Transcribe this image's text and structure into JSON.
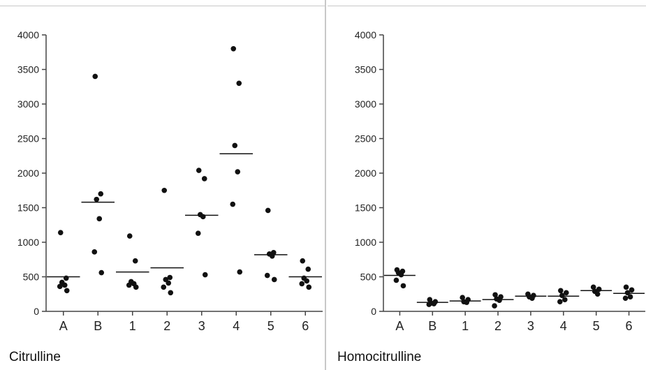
{
  "chart_data": [
    {
      "type": "scatter",
      "title": "Citrulline",
      "categories": [
        "A",
        "B",
        "1",
        "2",
        "3",
        "4",
        "5",
        "6"
      ],
      "ylim": [
        0,
        4000
      ],
      "yticks": [
        0,
        500,
        1000,
        1500,
        2000,
        2500,
        3000,
        3500,
        4000
      ],
      "grid": false,
      "points": [
        [
          1140,
          480,
          420,
          380,
          360,
          300
        ],
        [
          3400,
          1700,
          1620,
          1340,
          860,
          560
        ],
        [
          1090,
          730,
          430,
          400,
          380,
          350
        ],
        [
          1750,
          490,
          460,
          410,
          350,
          270
        ],
        [
          2040,
          1920,
          1400,
          1370,
          1130,
          530
        ],
        [
          3800,
          3300,
          2400,
          2020,
          1550,
          570
        ],
        [
          1460,
          850,
          830,
          800,
          520,
          460
        ],
        [
          730,
          610,
          480,
          440,
          400,
          350
        ]
      ],
      "means": [
        500,
        1580,
        570,
        630,
        1390,
        2280,
        820,
        500
      ]
    },
    {
      "type": "scatter",
      "title": "Homocitrulline",
      "categories": [
        "A",
        "B",
        "1",
        "2",
        "3",
        "4",
        "5",
        "6"
      ],
      "ylim": [
        0,
        4000
      ],
      "yticks": [
        0,
        500,
        1000,
        1500,
        2000,
        2500,
        3000,
        3500,
        4000
      ],
      "grid": false,
      "points": [
        [
          600,
          580,
          560,
          530,
          450,
          370
        ],
        [
          170,
          140,
          120,
          110,
          100
        ],
        [
          200,
          170,
          140,
          130
        ],
        [
          240,
          210,
          180,
          160,
          80
        ],
        [
          250,
          230,
          210,
          190
        ],
        [
          300,
          270,
          230,
          170,
          140
        ],
        [
          350,
          320,
          290,
          250
        ],
        [
          350,
          310,
          270,
          210,
          190
        ]
      ],
      "means": [
        520,
        130,
        150,
        170,
        220,
        220,
        300,
        260
      ]
    }
  ]
}
